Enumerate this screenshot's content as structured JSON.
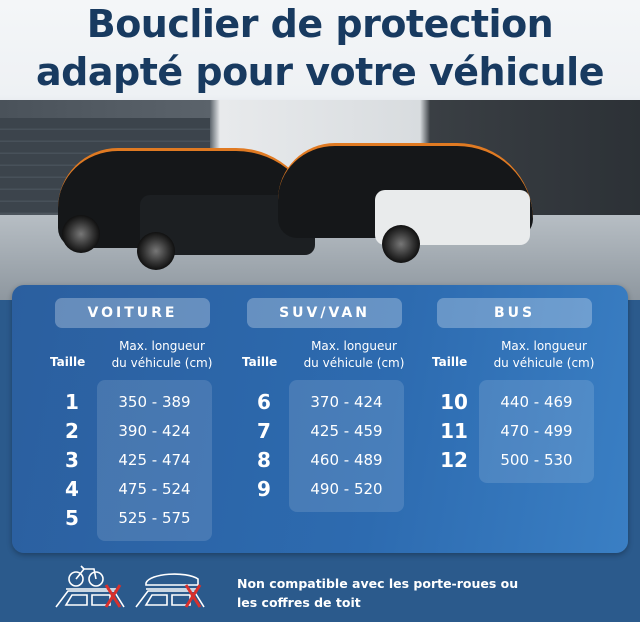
{
  "title": {
    "line1": "Bouclier de protection",
    "line2": "adapté pour votre véhicule"
  },
  "table": {
    "columns": [
      {
        "category": "VOITURE",
        "size_label": "Taille",
        "length_label_line1": "Max. longueur",
        "length_label_line2": "du véhicule (cm)",
        "rows": [
          {
            "size": "1",
            "range": "350 - 389"
          },
          {
            "size": "2",
            "range": "390 - 424"
          },
          {
            "size": "3",
            "range": "425 - 474"
          },
          {
            "size": "4",
            "range": "475 - 524"
          },
          {
            "size": "5",
            "range": "525 - 575"
          }
        ]
      },
      {
        "category": "SUV/VAN",
        "size_label": "Taille",
        "length_label_line1": "Max. longueur",
        "length_label_line2": "du véhicule (cm)",
        "rows": [
          {
            "size": "6",
            "range": "370 - 424"
          },
          {
            "size": "7",
            "range": "425 - 459"
          },
          {
            "size": "8",
            "range": "460 - 489"
          },
          {
            "size": "9",
            "range": "490 - 520"
          }
        ]
      },
      {
        "category": "BUS",
        "size_label": "Taille",
        "length_label_line1": "Max. longueur",
        "length_label_line2": "du véhicule (cm)",
        "rows": [
          {
            "size": "10",
            "range": "440 - 469"
          },
          {
            "size": "11",
            "range": "470 - 499"
          },
          {
            "size": "12",
            "range": "500 - 530"
          }
        ]
      }
    ]
  },
  "note": {
    "line1": "Non compatible avec les porte-roues ou",
    "line2": "les coffres de toit"
  },
  "icons": [
    "bike-rack-crossed-icon",
    "roof-box-crossed-icon"
  ],
  "colors": {
    "title": "#183a60",
    "panel": "#2d6bb0",
    "cross": "#d9302c"
  }
}
